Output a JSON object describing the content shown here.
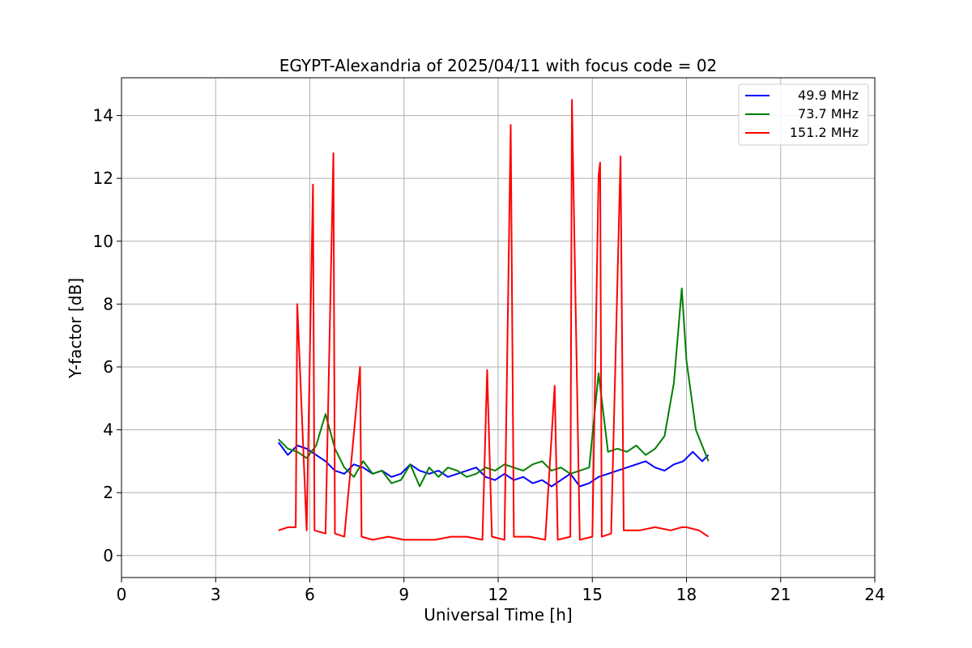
{
  "chart_data": {
    "type": "line",
    "title": "EGYPT-Alexandria of 2025/04/11 with focus code = 02",
    "xlabel": "Universal Time [h]",
    "ylabel": "Y-factor [dB]",
    "xlim": [
      0,
      24
    ],
    "ylim": [
      -0.7,
      15.2
    ],
    "xticks": [
      0,
      3,
      6,
      9,
      12,
      15,
      18,
      21,
      24
    ],
    "yticks": [
      0,
      2,
      4,
      6,
      8,
      10,
      12,
      14
    ],
    "grid": true,
    "legend_position": "top-right",
    "series": [
      {
        "name": "49.9 MHz",
        "color": "#0000ff",
        "x": [
          5.0,
          5.3,
          5.6,
          5.9,
          6.2,
          6.5,
          6.8,
          7.1,
          7.4,
          7.7,
          8.0,
          8.3,
          8.6,
          8.9,
          9.2,
          9.5,
          9.8,
          10.1,
          10.4,
          10.7,
          11.0,
          11.3,
          11.6,
          11.9,
          12.2,
          12.5,
          12.8,
          13.1,
          13.4,
          13.7,
          14.0,
          14.3,
          14.6,
          14.9,
          15.2,
          15.5,
          15.8,
          16.1,
          16.4,
          16.7,
          17.0,
          17.3,
          17.6,
          17.9,
          18.2,
          18.5,
          18.7
        ],
        "y": [
          3.6,
          3.2,
          3.5,
          3.4,
          3.2,
          3.0,
          2.7,
          2.6,
          2.9,
          2.8,
          2.6,
          2.7,
          2.5,
          2.6,
          2.9,
          2.7,
          2.6,
          2.7,
          2.5,
          2.6,
          2.7,
          2.8,
          2.5,
          2.4,
          2.6,
          2.4,
          2.5,
          2.3,
          2.4,
          2.2,
          2.4,
          2.6,
          2.2,
          2.3,
          2.5,
          2.6,
          2.7,
          2.8,
          2.9,
          3.0,
          2.8,
          2.7,
          2.9,
          3.0,
          3.3,
          3.0,
          3.2
        ]
      },
      {
        "name": "73.7 MHz",
        "color": "#008000",
        "x": [
          5.0,
          5.3,
          5.6,
          5.9,
          6.2,
          6.5,
          6.8,
          7.1,
          7.4,
          7.7,
          8.0,
          8.3,
          8.6,
          8.9,
          9.2,
          9.5,
          9.8,
          10.1,
          10.4,
          10.7,
          11.0,
          11.3,
          11.6,
          11.9,
          12.2,
          12.5,
          12.8,
          13.1,
          13.4,
          13.7,
          14.0,
          14.3,
          14.6,
          14.9,
          15.2,
          15.5,
          15.8,
          16.1,
          16.4,
          16.7,
          17.0,
          17.3,
          17.6,
          17.85,
          18.0,
          18.3,
          18.7
        ],
        "y": [
          3.7,
          3.4,
          3.3,
          3.1,
          3.5,
          4.5,
          3.4,
          2.8,
          2.5,
          3.0,
          2.6,
          2.7,
          2.3,
          2.4,
          2.9,
          2.2,
          2.8,
          2.5,
          2.8,
          2.7,
          2.5,
          2.6,
          2.8,
          2.7,
          2.9,
          2.8,
          2.7,
          2.9,
          3.0,
          2.7,
          2.8,
          2.6,
          2.7,
          2.8,
          5.8,
          3.3,
          3.4,
          3.3,
          3.5,
          3.2,
          3.4,
          3.8,
          5.5,
          8.5,
          6.2,
          4.0,
          3.0
        ]
      },
      {
        "name": "151.2 MHz",
        "color": "#ff0000",
        "x": [
          5.0,
          5.3,
          5.55,
          5.6,
          5.9,
          6.1,
          6.15,
          6.5,
          6.75,
          6.8,
          7.1,
          7.6,
          7.65,
          8.0,
          8.5,
          9.0,
          9.5,
          10.0,
          10.5,
          11.0,
          11.5,
          11.65,
          11.8,
          12.2,
          12.4,
          12.5,
          13.0,
          13.5,
          13.8,
          13.9,
          14.3,
          14.35,
          14.6,
          15.0,
          15.2,
          15.25,
          15.3,
          15.6,
          15.9,
          16.0,
          16.5,
          17.0,
          17.5,
          17.85,
          18.0,
          18.4,
          18.7
        ],
        "y": [
          0.8,
          0.9,
          0.9,
          8.0,
          0.8,
          11.8,
          0.8,
          0.7,
          12.8,
          0.7,
          0.6,
          6.0,
          0.6,
          0.5,
          0.6,
          0.5,
          0.5,
          0.5,
          0.6,
          0.6,
          0.5,
          5.9,
          0.6,
          0.5,
          13.7,
          0.6,
          0.6,
          0.5,
          5.4,
          0.5,
          0.6,
          14.5,
          0.5,
          0.6,
          12.1,
          12.5,
          0.6,
          0.7,
          12.7,
          0.8,
          0.8,
          0.9,
          0.8,
          0.9,
          0.9,
          0.8,
          0.6
        ]
      }
    ]
  }
}
